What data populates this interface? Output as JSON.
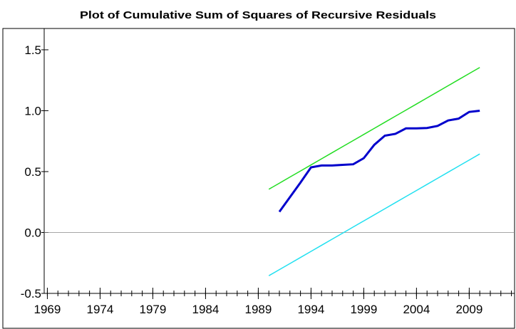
{
  "chart_data": {
    "type": "line",
    "title": "Plot of Cumulative Sum of Squares of Recursive Residuals",
    "x": [
      1990,
      1991,
      1992,
      1993,
      1994,
      1995,
      1996,
      1997,
      1998,
      1999,
      2000,
      2001,
      2002,
      2003,
      2004,
      2005,
      2006,
      2007,
      2008,
      2009,
      2010
    ],
    "series": [
      {
        "color": "#0000cc",
        "values": [
          null,
          0.17,
          0.29,
          0.41,
          0.535,
          0.55,
          0.55,
          0.555,
          0.56,
          0.61,
          0.72,
          0.795,
          0.81,
          0.855,
          0.855,
          0.858,
          0.875,
          0.92,
          0.935,
          0.99,
          1.0
        ]
      },
      {
        "color": "#22dd22",
        "values": [
          0.355,
          0.405,
          0.455,
          0.505,
          0.555,
          0.605,
          0.655,
          0.705,
          0.755,
          0.805,
          0.855,
          0.905,
          0.955,
          1.005,
          1.055,
          1.105,
          1.155,
          1.205,
          1.255,
          1.305,
          1.355
        ]
      },
      {
        "color": "#22e0f0",
        "values": [
          -0.355,
          -0.305,
          -0.255,
          -0.205,
          -0.155,
          -0.105,
          -0.055,
          -0.005,
          0.045,
          0.095,
          0.145,
          0.195,
          0.245,
          0.295,
          0.345,
          0.395,
          0.445,
          0.495,
          0.545,
          0.595,
          0.645
        ]
      }
    ],
    "xlim": [
      1968.7,
      2013.3
    ],
    "xticks": [
      1969,
      1974,
      1979,
      1984,
      1989,
      1994,
      1999,
      2004,
      2009
    ],
    "ylim": [
      -0.5,
      1.675
    ],
    "yticks": [
      -0.5,
      {
        "value": 0.0,
        "label": "0.0"
      },
      0.5,
      {
        "value": 1.0,
        "label": "1.0"
      },
      1.5
    ]
  }
}
